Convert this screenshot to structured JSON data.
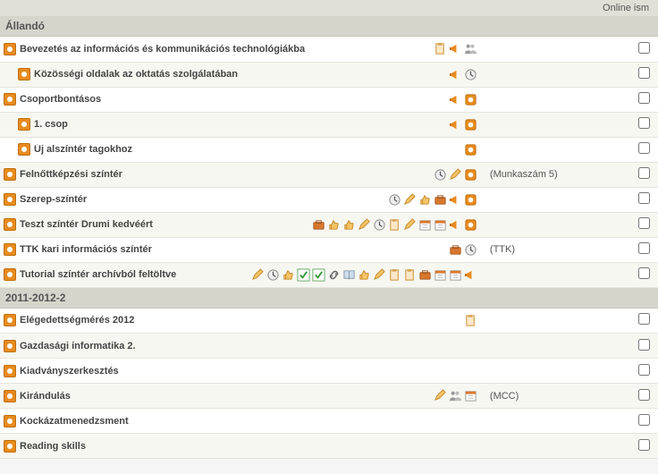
{
  "topbar": {
    "text": "Online ism"
  },
  "sections": [
    {
      "title": "Állandó",
      "rows": [
        {
          "indent": 1,
          "alt": false,
          "title": "Bevezetés az információs és kommunikációs technológiákba",
          "note": "",
          "icons": [
            "clipboard",
            "megaphone",
            "people"
          ]
        },
        {
          "indent": 2,
          "alt": true,
          "title": "Közösségi oldalak az oktatás szolgálatában",
          "note": "",
          "icons": [
            "megaphone",
            "clock"
          ]
        },
        {
          "indent": 1,
          "alt": false,
          "title": "Csoportbontásos",
          "note": "",
          "icons": [
            "megaphone",
            "square"
          ]
        },
        {
          "indent": 2,
          "alt": true,
          "title": "1. csop",
          "note": "",
          "icons": [
            "megaphone",
            "square"
          ]
        },
        {
          "indent": 2,
          "alt": false,
          "title": "Új alszíntér tagokhoz",
          "note": "",
          "icons": [
            "square"
          ]
        },
        {
          "indent": 1,
          "alt": true,
          "title": "Felnőttképzési színtér",
          "note": "(Munkaszám 5)",
          "icons": [
            "clock",
            "pencil",
            "square"
          ]
        },
        {
          "indent": 1,
          "alt": false,
          "title": "Szerep-színtér",
          "note": "",
          "icons": [
            "clock",
            "pencil",
            "thumb",
            "briefcase",
            "megaphone",
            "square"
          ]
        },
        {
          "indent": 1,
          "alt": true,
          "title": "Teszt színtér Drumi kedvéért",
          "note": "",
          "icons": [
            "briefcase",
            "thumb",
            "thumb",
            "pencil",
            "clock",
            "clipboard",
            "pencil",
            "calendar",
            "calendar",
            "megaphone",
            "square"
          ]
        },
        {
          "indent": 1,
          "alt": false,
          "title": "TTK kari információs színtér",
          "note": "(TTK)",
          "icons": [
            "briefcase",
            "clock"
          ]
        },
        {
          "indent": 1,
          "alt": true,
          "title": "Tutorial színtér archívból feltöltve",
          "note": "",
          "icons": [
            "pencil",
            "clock",
            "thumb",
            "check",
            "check",
            "link",
            "book",
            "thumb",
            "pencil",
            "clipboard",
            "clipboard",
            "briefcase",
            "calendar",
            "calendar",
            "megaphone"
          ]
        }
      ]
    },
    {
      "title": "2011-2012-2",
      "rows": [
        {
          "indent": 1,
          "alt": false,
          "title": "Elégedettségmérés 2012",
          "note": "",
          "icons": [
            "clipboard"
          ]
        },
        {
          "indent": 1,
          "alt": true,
          "title": "Gazdasági informatika 2.",
          "note": "",
          "icons": []
        },
        {
          "indent": 1,
          "alt": false,
          "title": "Kiadványszerkesztés",
          "note": "",
          "icons": []
        },
        {
          "indent": 1,
          "alt": true,
          "title": "Kirándulás",
          "note": "(MCC)",
          "icons": [
            "pencil",
            "people",
            "calendar"
          ]
        },
        {
          "indent": 1,
          "alt": false,
          "title": "Kockázatmenedzsment",
          "note": "",
          "icons": []
        },
        {
          "indent": 1,
          "alt": true,
          "title": "Reading skills",
          "note": "",
          "icons": []
        }
      ]
    }
  ],
  "iconSvg": {
    "clipboard": "<svg viewBox='0 0 16 16'><rect x='3' y='2' width='9' height='12' fill='#fce8c8' stroke='#c68a2e'/><rect x='5' y='1' width='5' height='3' fill='#d9a657' rx='1'/></svg>",
    "megaphone": "<svg viewBox='0 0 16 16'><path d='M2 7 L9 3 L9 13 L2 9 Z' fill='#e88b1e'/><rect x='1' y='6.5' width='2' height='3' fill='#c06e0a'/></svg>",
    "people": "<svg viewBox='0 0 16 16'><circle cx='5' cy='5' r='2.2' fill='#999'/><circle cx='10' cy='5' r='2.2' fill='#bbb'/><path d='M1 14c0-3 2-4 4-4s4 1 4 4z' fill='#999'/><path d='M7 14c0-3 2-4 4-4s4 1 4 4z' fill='#bbb'/></svg>",
    "clock": "<svg viewBox='0 0 16 16'><circle cx='8' cy='8' r='6' fill='#eee' stroke='#888'/><path d='M8 4 L8 8 L11 10' stroke='#555' fill='none' stroke-width='1.3'/></svg>",
    "square": "<svg viewBox='0 0 16 16'><rect x='2' y='2' width='12' height='12' rx='2' fill='#e88b1e' stroke='#c06e0a'/><circle cx='8' cy='8' r='3' fill='#fff'/></svg>",
    "pencil": "<svg viewBox='0 0 16 16'><path d='M2 13 L4 8 L11 1 L14 4 L7 11 L2 13 Z' fill='#f4c465' stroke='#c68a2e'/></svg>",
    "thumb": "<svg viewBox='0 0 16 16'><path d='M3 8h2v5H3z M5 8c0-2 2-2 2-5 1 0 2 1 2 3h3c1 0 1 1 1 1l-1 5c0 1-1 1-1 1H5z' fill='#f4c465' stroke='#c68a2e'/></svg>",
    "briefcase": "<svg viewBox='0 0 16 16'><rect x='2' y='5' width='12' height='8' fill='#d9782d' stroke='#a3551a' rx='1'/><rect x='5' y='3' width='6' height='3' fill='none' stroke='#a3551a'/></svg>",
    "calendar": "<svg viewBox='0 0 16 16'><rect x='2' y='3' width='12' height='11' fill='#fff' stroke='#999'/><rect x='2' y='3' width='12' height='3' fill='#d9782d'/><line x1='5' y1='8' x2='11' y2='8' stroke='#bbb'/><line x1='5' y1='11' x2='11' y2='11' stroke='#bbb'/></svg>",
    "check": "<svg viewBox='0 0 16 16'><rect x='1' y='1' width='14' height='14' fill='#fff' stroke='#6a6'/><path d='M4 8 L7 11 L12 4' stroke='#393' fill='none' stroke-width='2'/></svg>",
    "link": "<svg viewBox='0 0 16 16'><path d='M6 10a3 3 0 0 1 0-4l2-2a3 3 0 0 1 4 4' fill='none' stroke='#666' stroke-width='1.6'/><path d='M10 6a3 3 0 0 1 0 4l-2 2a3 3 0 0 1-4-4' fill='none' stroke='#666' stroke-width='1.6'/></svg>",
    "book": "<svg viewBox='0 0 16 16'><path d='M2 3 h5 c1 0 1 1 1 1v9 c0 0 0-1-1-1H2z' fill='#cde' stroke='#89a'/><path d='M14 3 h-5 c-1 0-1 1-1 1v9 c0 0 0-1 1-1h5z' fill='#cde' stroke='#89a'/></svg>"
  }
}
